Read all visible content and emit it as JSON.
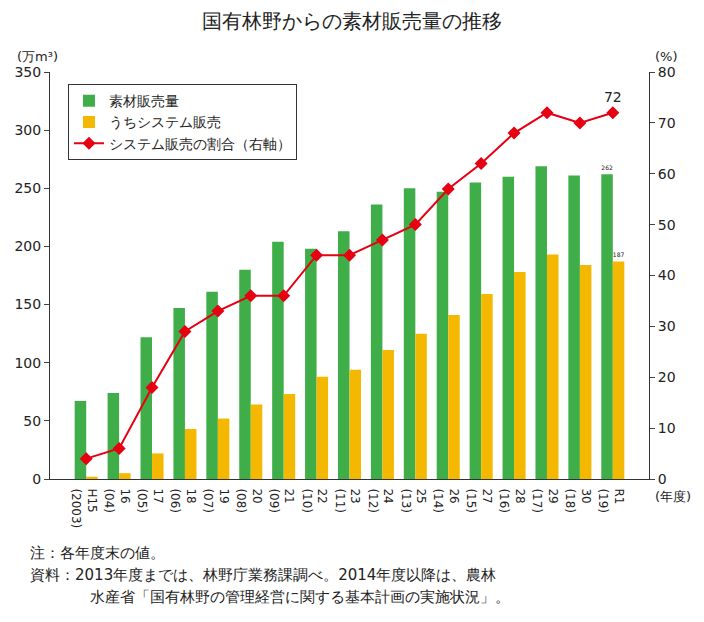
{
  "chart_data": {
    "type": "bar",
    "title": "国有林野からの素材販売量の推移",
    "categories": [
      "H15\n(2003)",
      "16\n(04)",
      "17\n(05)",
      "18\n(06)",
      "19\n(07)",
      "20\n(08)",
      "21\n(09)",
      "22\n(10)",
      "23\n(11)",
      "24\n(12)",
      "25\n(13)",
      "26\n(14)",
      "27\n(15)",
      "28\n(16)",
      "29\n(17)",
      "30\n(18)",
      "R1\n(19)"
    ],
    "xlabel": "(年度)",
    "ylabel": "(万m³)",
    "y2label": "(%)",
    "series": [
      {
        "name": "素材販売量",
        "type": "bar",
        "color": "#3fae49",
        "values": [
          67,
          74,
          122,
          147,
          161,
          180,
          204,
          198,
          213,
          236,
          250,
          247,
          255,
          260,
          269,
          261,
          262
        ],
        "value_labels": [
          null,
          null,
          null,
          null,
          null,
          null,
          null,
          null,
          null,
          null,
          null,
          null,
          null,
          null,
          null,
          null,
          "262"
        ]
      },
      {
        "name": "うちシステム販売",
        "type": "bar",
        "color": "#f5b800",
        "values": [
          2,
          5,
          22,
          43,
          52,
          64,
          73,
          88,
          94,
          111,
          125,
          141,
          159,
          178,
          193,
          184,
          187
        ],
        "value_labels": [
          null,
          null,
          null,
          null,
          null,
          null,
          null,
          null,
          null,
          null,
          null,
          null,
          null,
          null,
          null,
          null,
          "187"
        ]
      },
      {
        "name": "システム販売の割合（右軸）",
        "type": "line",
        "axis": "y2",
        "color": "#e60012",
        "marker": "diamond",
        "values": [
          4,
          6,
          18,
          29,
          33,
          36,
          36,
          44,
          44,
          47,
          50,
          57,
          62,
          68,
          72,
          70,
          72
        ],
        "value_labels": [
          null,
          null,
          null,
          null,
          null,
          null,
          null,
          null,
          null,
          null,
          null,
          null,
          null,
          null,
          null,
          null,
          "72"
        ]
      }
    ],
    "ylim": [
      0,
      350
    ],
    "yticks": [
      0,
      50,
      100,
      150,
      200,
      250,
      300,
      350
    ],
    "y2lim": [
      0,
      80
    ],
    "y2ticks": [
      0,
      10,
      20,
      30,
      40,
      50,
      60,
      70,
      80
    ],
    "grid": false,
    "legend": "upper left",
    "data_labels": true,
    "notes": [
      "注：各年度末の値。",
      "資料：2013年度までは、林野庁業務課調べ。2014年度以降は、農林",
      "水産省「国有林野の管理経営に関する基本計画の実施状況」。"
    ]
  }
}
